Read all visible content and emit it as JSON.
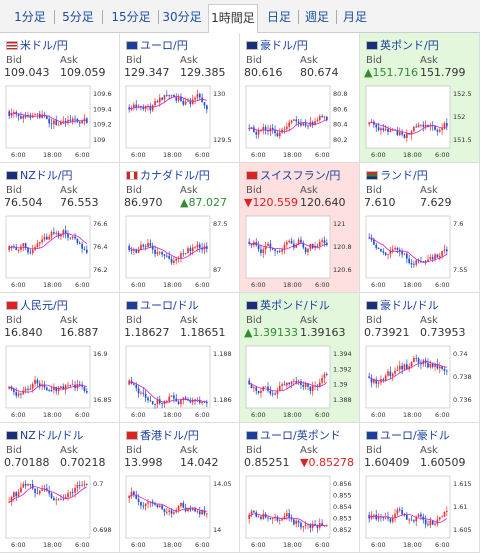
{
  "tabs": [
    {
      "label": "1分足"
    },
    {
      "label": "5分足"
    },
    {
      "label": "15分足"
    },
    {
      "label": "30分足"
    },
    {
      "label": "1時間足"
    },
    {
      "label": "日足"
    },
    {
      "label": "週足"
    },
    {
      "label": "月足"
    }
  ],
  "active_tab": "1時間足",
  "bid_label": "Bid",
  "ask_label": "Ask",
  "x_ticks": [
    "6:00",
    "18:00",
    "6:00"
  ],
  "colors": {
    "link": "#1a3fa0",
    "up": "#2f8f2f",
    "down": "#dd2222",
    "candle_up": "#e8332a",
    "candle_down": "#1f4fd1",
    "ma": "#d021d0",
    "green_bg": "#e3f7dc",
    "pink_bg": "#fde0df"
  },
  "pairs": [
    {
      "name": "米ドル/円",
      "flag": "us-flag",
      "bid": "109.043",
      "ask": "109.059",
      "bg": "",
      "bid_dir": "",
      "ask_dir": "",
      "yticks": [
        "109.6",
        "109.4",
        "109.2",
        "109"
      ]
    },
    {
      "name": "ユーロ/円",
      "flag": "eu-flag",
      "bid": "129.347",
      "ask": "129.385",
      "bg": "",
      "bid_dir": "",
      "ask_dir": "",
      "yticks": [
        "130",
        "129.5"
      ]
    },
    {
      "name": "豪ドル/円",
      "flag": "au-flag",
      "bid": "80.616",
      "ask": "80.674",
      "bg": "",
      "bid_dir": "",
      "ask_dir": "",
      "yticks": [
        "80.8",
        "80.6",
        "80.4",
        "80.2"
      ]
    },
    {
      "name": "英ポンド/円",
      "flag": "gb-flag",
      "bid": "▲151.716",
      "ask": "151.799",
      "bg": "green",
      "bid_dir": "up",
      "ask_dir": "",
      "yticks": [
        "152.5",
        "152",
        "151.5"
      ]
    },
    {
      "name": "NZドル/円",
      "flag": "nz-flag",
      "bid": "76.504",
      "ask": "76.553",
      "bg": "",
      "bid_dir": "",
      "ask_dir": "",
      "yticks": [
        "76.6",
        "76.4",
        "76.2"
      ]
    },
    {
      "name": "カナダドル/円",
      "flag": "ca-flag",
      "bid": "86.970",
      "ask": "▲87.027",
      "bg": "",
      "bid_dir": "",
      "ask_dir": "up",
      "yticks": [
        "87.5",
        "87"
      ]
    },
    {
      "name": "スイスフラン/円",
      "flag": "ch-flag",
      "bid": "▼120.559",
      "ask": "120.640",
      "bg": "pink",
      "bid_dir": "dn",
      "ask_dir": "",
      "yticks": [
        "121",
        "120.8",
        "120.6"
      ]
    },
    {
      "name": "ランド/円",
      "flag": "za-flag",
      "bid": "7.610",
      "ask": "7.629",
      "bg": "",
      "bid_dir": "",
      "ask_dir": "",
      "yticks": [
        "7.6",
        "7.55"
      ]
    },
    {
      "name": "人民元/円",
      "flag": "cn-flag",
      "bid": "16.840",
      "ask": "16.887",
      "bg": "",
      "bid_dir": "",
      "ask_dir": "",
      "yticks": [
        "16.9",
        "16.85"
      ]
    },
    {
      "name": "ユーロ/ドル",
      "flag": "eu-flag",
      "bid": "1.18627",
      "ask": "1.18651",
      "bg": "",
      "bid_dir": "",
      "ask_dir": "",
      "yticks": [
        "1.188",
        "1.186"
      ]
    },
    {
      "name": "英ポンド/ドル",
      "flag": "gb-flag",
      "bid": "▲1.39133",
      "ask": "1.39163",
      "bg": "green",
      "bid_dir": "up",
      "ask_dir": "",
      "yticks": [
        "1.394",
        "1.392",
        "1.39",
        "1.388"
      ]
    },
    {
      "name": "豪ドル/ドル",
      "flag": "au-flag",
      "bid": "0.73921",
      "ask": "0.73953",
      "bg": "",
      "bid_dir": "",
      "ask_dir": "",
      "yticks": [
        "0.74",
        "0.738",
        "0.736"
      ]
    },
    {
      "name": "NZドル/ドル",
      "flag": "nz-flag",
      "bid": "0.70188",
      "ask": "0.70218",
      "bg": "",
      "bid_dir": "",
      "ask_dir": "",
      "yticks": [
        "0.7",
        "0.698"
      ]
    },
    {
      "name": "香港ドル/円",
      "flag": "hk-flag",
      "bid": "13.998",
      "ask": "14.042",
      "bg": "",
      "bid_dir": "",
      "ask_dir": "",
      "yticks": [
        "14.05",
        "14"
      ]
    },
    {
      "name": "ユーロ/英ポンド",
      "flag": "eu-flag",
      "bid": "0.85251",
      "ask": "▼0.85278",
      "bg": "",
      "bid_dir": "",
      "ask_dir": "dn",
      "yticks": [
        "0.856",
        "0.855",
        "0.854",
        "0.853",
        "0.852"
      ]
    },
    {
      "name": "ユーロ/豪ドル",
      "flag": "eu-flag",
      "bid": "1.60409",
      "ask": "1.60509",
      "bg": "",
      "bid_dir": "",
      "ask_dir": "",
      "yticks": [
        "1.615",
        "1.61",
        "1.605"
      ]
    }
  ]
}
